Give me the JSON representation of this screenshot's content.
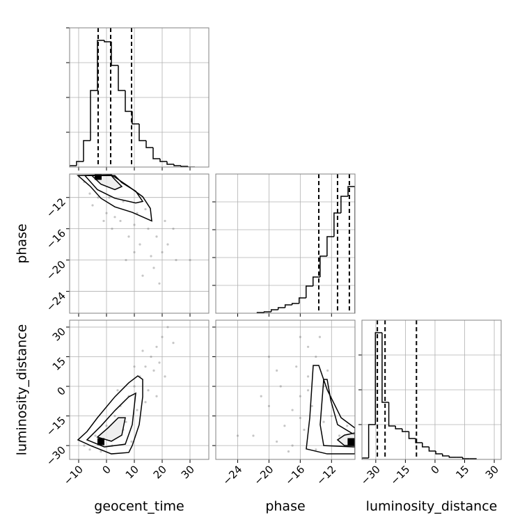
{
  "chart_data": {
    "type": "corner",
    "grid": true,
    "line_color": "#000000",
    "point_color": "#808080",
    "grid_color": "#b0b0b0",
    "parameters": [
      {
        "name": "geocent_time",
        "lim": [
          -13.25,
          36.75
        ],
        "ticks": [
          {
            "value": -10,
            "label": "−10"
          },
          0,
          10,
          20,
          30
        ]
      },
      {
        "name": "phase",
        "lim": [
          -26.8,
          -9
        ],
        "ticks": [
          {
            "value": -24,
            "label": "−24"
          },
          {
            "value": -20,
            "label": "−20"
          },
          {
            "value": -16,
            "label": "−16"
          },
          {
            "value": -12,
            "label": "−12"
          }
        ]
      },
      {
        "name": "luminosity_distance",
        "lim": [
          -37,
          33.5
        ],
        "ticks": [
          {
            "value": -30,
            "label": "−30"
          },
          {
            "value": -15,
            "label": "−15"
          },
          0,
          15,
          30
        ]
      }
    ],
    "histograms": [
      {
        "bins": [
          -13.25,
          -10.75,
          -8.25,
          -5.75,
          -3.25,
          -0.75,
          1.75,
          4.25,
          6.75,
          9.25,
          11.75,
          14.25,
          16.75,
          19.25,
          21.75,
          24.25,
          26.75,
          29.25,
          31.75
        ],
        "counts": [
          1,
          4,
          19,
          55,
          91,
          90,
          73,
          55,
          40,
          31,
          19,
          14,
          6,
          4,
          2,
          1,
          0.5,
          0
        ],
        "ylim": [
          0,
          100
        ],
        "yticks": [
          25,
          50,
          75,
          100
        ],
        "quantiles": [
          -3,
          1.5,
          9
        ]
      },
      {
        "bins": [
          -21.5,
          -20.61,
          -19.71,
          -18.82,
          -17.93,
          -17.04,
          -16.14,
          -15.25,
          -14.36,
          -13.46,
          -12.57,
          -11.68,
          -10.79,
          -9.89,
          -9
        ],
        "counts": [
          0.5,
          1,
          2.5,
          4,
          6,
          7,
          11,
          19.5,
          26,
          41,
          55,
          72,
          84,
          91
        ],
        "ylim": [
          0,
          100
        ],
        "yticks": [
          20,
          40,
          60,
          80
        ],
        "quantiles": [
          -13.63,
          -11.23,
          -9.72
        ]
      },
      {
        "bins": [
          -37,
          -33.6,
          -30.2,
          -26.8,
          -23.4,
          -20,
          -16.6,
          -13.2,
          -9.8,
          -6.4,
          -3,
          0.4,
          3.8,
          7.2,
          10.6,
          14,
          17.4,
          20.8
        ],
        "counts": [
          1,
          25,
          91,
          41,
          24,
          22,
          20,
          15,
          12,
          9,
          6,
          4,
          2.5,
          1.5,
          1.5,
          0.5,
          0.5
        ],
        "ylim": [
          0,
          100
        ],
        "yticks": [
          25,
          50,
          75
        ],
        "quantiles": [
          -29.2,
          -25.3,
          -9.4
        ]
      }
    ],
    "pairs": [
      {
        "points": {
          "x": [
            -8,
            -5,
            0,
            2,
            5,
            8,
            10,
            12,
            15,
            18,
            20,
            -3,
            6,
            14,
            22,
            25,
            17,
            10,
            3,
            -6,
            7,
            13,
            19,
            30,
            24,
            1,
            -1,
            11,
            16,
            21
          ],
          "y": [
            -10,
            -13,
            -14,
            -16,
            -15,
            -17,
            -15.5,
            -18,
            -16,
            -17,
            -19,
            -12,
            -12.5,
            -13.5,
            -18,
            -20,
            -21,
            -19,
            -14.5,
            -11.5,
            -20,
            -22,
            -23,
            -20,
            -16,
            -12,
            -15,
            -14,
            -19.5,
            -15
          ]
        },
        "contours": [
          {
            "x": [
              -10.25,
              -5.75,
              -2,
              3,
              9.25,
              16.25,
              15.75,
              13,
              8,
              3,
              1.75
            ],
            "y": [
              -9.2,
              -10.6,
              -12.1,
              -13.2,
              -13.9,
              -15,
              -13.4,
              -11.9,
              -10.6,
              -9.4,
              -9.1
            ]
          },
          {
            "x": [
              -7.75,
              -3.25,
              3,
              10.5,
              13,
              10.5,
              5.5,
              3
            ],
            "y": [
              -9.2,
              -11,
              -12.1,
              -12.7,
              -12.5,
              -11.2,
              -10.1,
              -9.2
            ]
          },
          {
            "x": [
              -5.25,
              -2,
              3,
              5.5,
              3,
              1.75
            ],
            "y": [
              -9.2,
              -10.3,
              -11,
              -10.6,
              -9.7,
              -9.2
            ]
          }
        ],
        "mode": [
          -3,
          -9.3
        ]
      },
      {
        "points": {
          "x": [
            -8,
            -4,
            0,
            3,
            5,
            8,
            10,
            12,
            14,
            16,
            18,
            20,
            22,
            6,
            15,
            17,
            11,
            -2,
            9,
            19,
            13,
            7,
            2,
            21,
            24,
            -6,
            14,
            10,
            18,
            4
          ],
          "y": [
            -30,
            -25,
            -20,
            -15,
            -10,
            -5,
            0,
            5,
            10,
            15,
            20,
            25,
            30,
            -22,
            -2,
            8,
            -12,
            -33,
            -28,
            12,
            18,
            -18,
            -30,
            5,
            22,
            -32,
            -8,
            10,
            -5,
            -2
          ]
        },
        "contours": [
          {
            "x": [
              -10.25,
              -5.75,
              1.75,
              8,
              9.25,
              11.75,
              13,
              13,
              11.25,
              8,
              3,
              -3.25,
              -7
            ],
            "y": [
              -27.1,
              -30,
              -34.2,
              -33.5,
              -30,
              -19.4,
              -5.3,
              3.5,
              5.3,
              1.8,
              -5.3,
              -15.9,
              -22.9
            ]
          },
          {
            "x": [
              -7,
              -0.75,
              6.75,
              9.25,
              10.5,
              8,
              3,
              -2
            ],
            "y": [
              -27.1,
              -30.7,
              -29.3,
              -19.4,
              -3.5,
              -5.3,
              -12.3,
              -20.1
            ]
          },
          {
            "x": [
              -3.25,
              1.75,
              5.5,
              6.75,
              4.25,
              0.5
            ],
            "y": [
              -25.7,
              -27.8,
              -24.7,
              -15.9,
              -15.9,
              -21.1
            ]
          }
        ],
        "mode": [
          -2,
          -28
        ]
      },
      {
        "points": {
          "x": [
            -22,
            -20,
            -18,
            -17,
            -16,
            -15,
            -14,
            -13.5,
            -15,
            -16.5,
            -17,
            -19,
            -12,
            -11,
            -14,
            -13,
            -15.5,
            -18.5,
            -20,
            -24,
            -16,
            -14.5,
            -12.5,
            -10,
            -17.5,
            -21,
            -13,
            -15,
            -19,
            -16
          ],
          "y": [
            -25,
            -10,
            -20,
            -30,
            -5,
            5,
            15,
            25,
            20,
            10,
            -12,
            -28,
            -15,
            -25,
            -32,
            0,
            -22,
            0,
            15,
            -25,
            25,
            -10,
            8,
            -20,
            -33,
            -5,
            -18,
            -2,
            8,
            -16
          ]
        },
        "contours": [
          {
            "x": [
              -14.34,
              -14.78,
              -15.23,
              -12.56,
              -9,
              -9,
              -10.78,
              -12.56,
              -13.63
            ],
            "y": [
              10.6,
              -15.9,
              -31.7,
              -34.2,
              -34.2,
              -21.1,
              -15.9,
              -1.7,
              10.6
            ]
          },
          {
            "x": [
              -13,
              -13.45,
              -13,
              -9,
              -9,
              -11.23,
              -12.1,
              -12.56
            ],
            "y": [
              3.5,
              -19.4,
              -30,
              -30.7,
              -24.7,
              -19.4,
              -7,
              3.5
            ]
          },
          {
            "x": [
              -11.23,
              -10.34,
              -9,
              -9,
              -10.34
            ],
            "y": [
              -27.1,
              -30,
              -30,
              -23.6,
              -24.7
            ]
          }
        ],
        "mode": [
          -9.5,
          -28
        ]
      }
    ]
  }
}
